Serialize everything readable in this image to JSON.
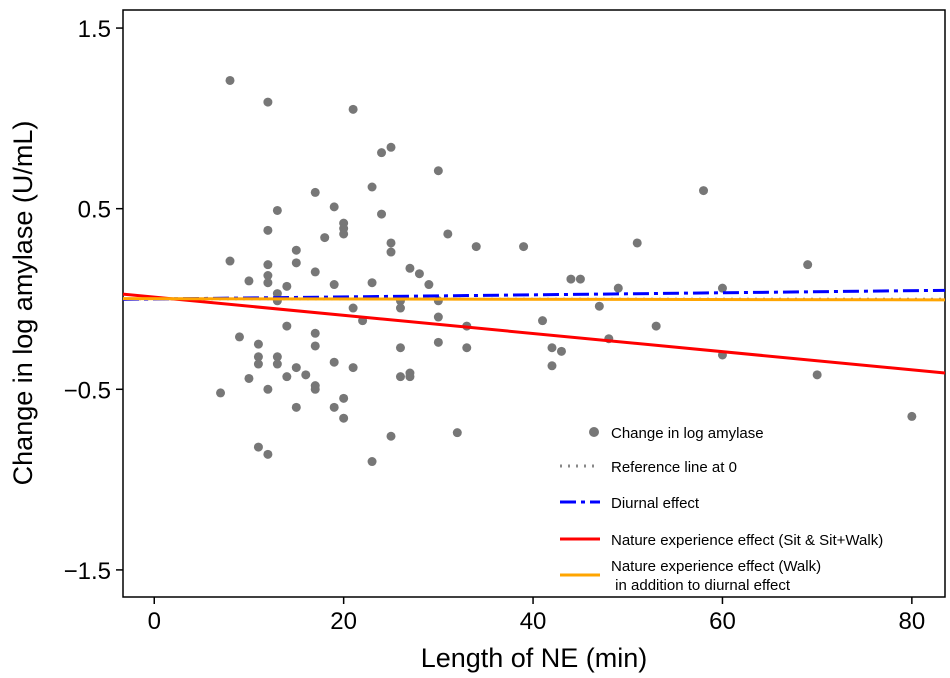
{
  "chart_data": {
    "type": "scatter",
    "title": "",
    "xlabel": "Length of NE (min)",
    "ylabel": "Change in log amylase (U/mL)",
    "xlim": [
      -3.3,
      83.5
    ],
    "ylim": [
      -1.65,
      1.6
    ],
    "xticks": [
      0,
      20,
      40,
      60,
      80
    ],
    "xtick_labels": [
      "0",
      "20",
      "40",
      "60",
      "80"
    ],
    "yticks": [
      1.5,
      0.5,
      -0.5,
      -1.5
    ],
    "ytick_labels": [
      "1.5",
      "0.5",
      "−0.5",
      "−1.5"
    ],
    "grid": false,
    "legend_position": "bottom-right",
    "colors": {
      "points": "#777777",
      "reference": "#888888",
      "diurnal": "#0000ff",
      "sit": "#ff0000",
      "walk": "#ffa500"
    },
    "series": [
      {
        "name": "Change in log amylase",
        "kind": "points",
        "x": [
          8,
          12,
          21,
          24,
          25,
          30,
          17,
          23,
          13,
          19,
          20,
          20,
          20,
          12,
          18,
          25,
          25,
          24,
          31,
          15,
          15,
          8,
          34,
          39,
          51,
          58,
          69,
          12,
          12,
          12,
          10,
          14,
          17,
          19,
          27,
          28,
          29,
          23,
          44,
          45,
          49,
          60,
          13,
          13,
          21,
          26,
          26,
          30,
          30,
          22,
          14,
          17,
          41,
          33,
          47,
          53,
          17,
          9,
          11,
          19,
          11,
          11,
          13,
          13,
          26,
          30,
          33,
          42,
          43,
          42,
          48,
          60,
          70,
          10,
          12,
          14,
          16,
          15,
          17,
          17,
          21,
          27,
          27,
          26,
          7,
          15,
          19,
          20,
          20,
          11,
          12,
          23,
          25,
          32,
          80
        ],
        "y": [
          1.21,
          1.09,
          1.05,
          0.81,
          0.84,
          0.71,
          0.59,
          0.62,
          0.49,
          0.51,
          0.42,
          0.39,
          0.36,
          0.38,
          0.34,
          0.31,
          0.26,
          0.47,
          0.36,
          0.27,
          0.2,
          0.21,
          0.29,
          0.29,
          0.31,
          0.6,
          0.19,
          0.19,
          0.13,
          0.09,
          0.1,
          0.07,
          0.15,
          0.08,
          0.17,
          0.14,
          0.08,
          0.09,
          0.11,
          0.11,
          0.06,
          0.06,
          0.03,
          -0.01,
          -0.05,
          -0.01,
          -0.05,
          -0.01,
          -0.1,
          -0.12,
          -0.15,
          -0.19,
          -0.12,
          -0.15,
          -0.04,
          -0.15,
          -0.26,
          -0.21,
          -0.25,
          -0.35,
          -0.32,
          -0.36,
          -0.32,
          -0.36,
          -0.27,
          -0.24,
          -0.27,
          -0.27,
          -0.29,
          -0.37,
          -0.22,
          -0.31,
          -0.42,
          -0.44,
          -0.5,
          -0.43,
          -0.42,
          -0.38,
          -0.48,
          -0.5,
          -0.38,
          -0.41,
          -0.43,
          -0.43,
          -0.52,
          -0.6,
          -0.6,
          -0.55,
          -0.66,
          -0.82,
          -0.86,
          -0.9,
          -0.76,
          -0.74,
          -0.65
        ]
      },
      {
        "name": "Reference line at 0",
        "kind": "line",
        "style": "dotted",
        "x": [
          -3.3,
          83.5
        ],
        "y": [
          0,
          0
        ]
      },
      {
        "name": "Diurnal effect",
        "kind": "line",
        "style": "dashdot",
        "x": [
          -3.3,
          83.5
        ],
        "y": [
          -0.002,
          0.048
        ]
      },
      {
        "name": "Nature experience effect (Sit & Sit+Walk)",
        "kind": "line",
        "style": "solid",
        "x": [
          -3.3,
          83.5
        ],
        "y": [
          0.027,
          -0.41
        ]
      },
      {
        "name": "Nature experience effect (Walk)\n in addition to diurnal effect",
        "kind": "line",
        "style": "solid",
        "x": [
          -3.3,
          83.5
        ],
        "y": [
          0.002,
          -0.005
        ]
      }
    ],
    "legend": [
      "Change in log amylase",
      "Reference line at 0",
      "Diurnal effect",
      "Nature experience effect (Sit & Sit+Walk)",
      "Nature experience effect (Walk)",
      " in addition to diurnal effect"
    ]
  }
}
